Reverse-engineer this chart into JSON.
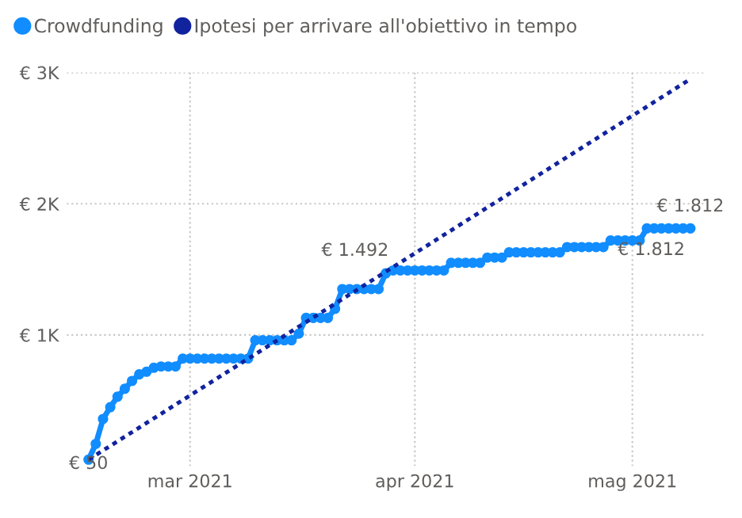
{
  "chart_data": {
    "type": "line",
    "x": [
      "2021-02-15",
      "2021-02-16",
      "2021-02-17",
      "2021-02-18",
      "2021-02-19",
      "2021-02-20",
      "2021-02-21",
      "2021-02-22",
      "2021-02-23",
      "2021-02-24",
      "2021-02-25",
      "2021-02-26",
      "2021-02-27",
      "2021-02-28",
      "2021-03-01",
      "2021-03-02",
      "2021-03-03",
      "2021-03-04",
      "2021-03-05",
      "2021-03-06",
      "2021-03-07",
      "2021-03-08",
      "2021-03-09",
      "2021-03-10",
      "2021-03-11",
      "2021-03-12",
      "2021-03-13",
      "2021-03-14",
      "2021-03-15",
      "2021-03-16",
      "2021-03-17",
      "2021-03-18",
      "2021-03-19",
      "2021-03-20",
      "2021-03-21",
      "2021-03-22",
      "2021-03-23",
      "2021-03-24",
      "2021-03-25",
      "2021-03-26",
      "2021-03-27",
      "2021-03-28",
      "2021-03-29",
      "2021-03-30",
      "2021-03-31",
      "2021-04-01",
      "2021-04-02",
      "2021-04-03",
      "2021-04-04",
      "2021-04-05",
      "2021-04-06",
      "2021-04-07",
      "2021-04-08",
      "2021-04-09",
      "2021-04-10",
      "2021-04-11",
      "2021-04-12",
      "2021-04-13",
      "2021-04-14",
      "2021-04-15",
      "2021-04-16",
      "2021-04-17",
      "2021-04-18",
      "2021-04-19",
      "2021-04-20",
      "2021-04-21",
      "2021-04-22",
      "2021-04-23",
      "2021-04-24",
      "2021-04-25",
      "2021-04-26",
      "2021-04-27",
      "2021-04-28",
      "2021-04-29",
      "2021-04-30",
      "2021-05-01",
      "2021-05-02",
      "2021-05-03",
      "2021-05-04",
      "2021-05-05",
      "2021-05-06",
      "2021-05-07",
      "2021-05-08",
      "2021-05-09"
    ],
    "series": [
      {
        "name": "Crowdfunding",
        "color": "#118dff",
        "marker": "circle",
        "line_style": "solid",
        "values": [
          50,
          170,
          360,
          450,
          530,
          590,
          650,
          700,
          720,
          750,
          760,
          760,
          760,
          820,
          820,
          820,
          820,
          820,
          820,
          820,
          820,
          820,
          820,
          960,
          960,
          960,
          960,
          960,
          960,
          1010,
          1130,
          1130,
          1130,
          1130,
          1200,
          1350,
          1350,
          1350,
          1350,
          1350,
          1350,
          1470,
          1492,
          1492,
          1492,
          1492,
          1492,
          1492,
          1492,
          1492,
          1550,
          1550,
          1550,
          1550,
          1550,
          1590,
          1590,
          1590,
          1630,
          1630,
          1630,
          1630,
          1630,
          1630,
          1630,
          1630,
          1670,
          1670,
          1670,
          1670,
          1670,
          1670,
          1720,
          1720,
          1720,
          1720,
          1720,
          1812,
          1812,
          1812,
          1812,
          1812,
          1812,
          1812
        ]
      },
      {
        "name": "Ipotesi per arrivare all'obiettivo in tempo",
        "color": "#12239e",
        "marker": "none",
        "line_style": "dotted",
        "x": [
          "2021-02-15",
          "2021-05-09"
        ],
        "values": [
          50,
          2950
        ]
      }
    ],
    "xlim": [
      "2021-02-12",
      "2021-05-11"
    ],
    "xticks": [
      {
        "value": "2021-03-01",
        "label": "mar 2021"
      },
      {
        "value": "2021-04-01",
        "label": "apr 2021"
      },
      {
        "value": "2021-05-01",
        "label": "mag 2021"
      }
    ],
    "ylim": [
      0,
      3000
    ],
    "yticks": [
      {
        "value": 1000,
        "label": "€ 1K"
      },
      {
        "value": 2000,
        "label": "€ 2K"
      },
      {
        "value": 3000,
        "label": "€ 3K"
      }
    ],
    "annotations": [
      {
        "text": "€ 50",
        "x": "2021-02-15",
        "y": 50
      },
      {
        "text": "€ 1.492",
        "x": "2021-03-29",
        "y": 1492
      },
      {
        "text": "€ 1.812",
        "x": "2021-05-09",
        "y": 1812
      },
      {
        "text": "€ 1.812",
        "x": "2021-05-03",
        "y": 1812
      }
    ],
    "grid": true,
    "legend": "top left"
  }
}
